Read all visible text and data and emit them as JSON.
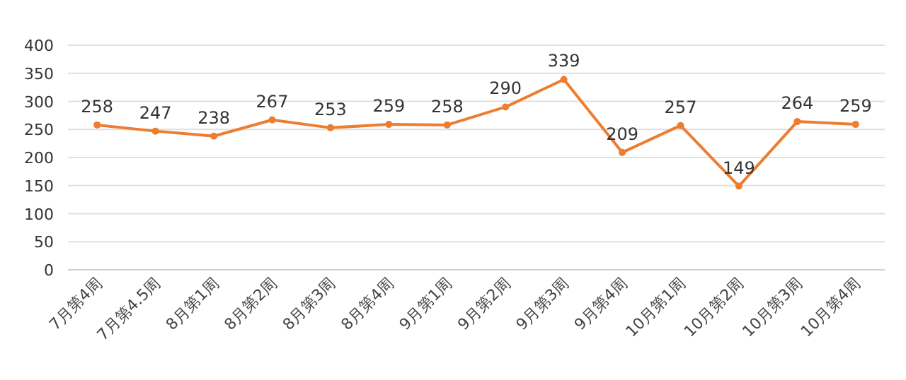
{
  "chart_data": {
    "type": "line",
    "categories": [
      "7月第4周",
      "7月第4.5周",
      "8月第1周",
      "8月第2周",
      "8月第3周",
      "8月第4周",
      "9月第1周",
      "9月第2周",
      "9月第3周",
      "9月第4周",
      "10月第1周",
      "10月第2周",
      "10月第3周",
      "10月第4周"
    ],
    "values": [
      258,
      247,
      238,
      267,
      253,
      259,
      258,
      290,
      339,
      209,
      257,
      149,
      264,
      259
    ],
    "color": "#ed7d31",
    "ylim": [
      0,
      400
    ],
    "yticks": [
      0,
      50,
      100,
      150,
      200,
      250,
      300,
      350,
      400
    ],
    "grid": "y",
    "marker": "circle",
    "data_labels": true
  }
}
